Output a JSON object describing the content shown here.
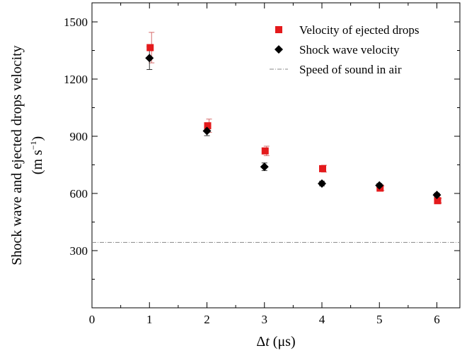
{
  "chart_data": {
    "type": "scatter",
    "title": "",
    "xlabel": {
      "italic_symbol": "t",
      "prefix": "Δ",
      "unit": " (μs)"
    },
    "ylabel": {
      "line1": "Shock wave and ejected drops velocity",
      "line2_prefix": "(m s",
      "line2_sup": "−1",
      "line2_suffix": ")"
    },
    "xlim": [
      0,
      6.4
    ],
    "ylim": [
      0,
      1600
    ],
    "x_ticks": [
      0,
      1,
      2,
      3,
      4,
      5,
      6
    ],
    "y_ticks": [
      300,
      600,
      900,
      1200,
      1500
    ],
    "x_tick_labels": [
      "0",
      "1",
      "2",
      "3",
      "4",
      "5",
      "6"
    ],
    "y_tick_labels": [
      "300",
      "600",
      "900",
      "1200",
      "1500"
    ],
    "series": [
      {
        "name": "Velocity of ejected drops",
        "marker": "square",
        "color": "#e41a1c",
        "x": [
          1,
          2,
          3,
          4,
          5,
          6
        ],
        "y": [
          1365,
          955,
          823,
          730,
          628,
          562
        ],
        "err": [
          80,
          35,
          25,
          18,
          12,
          12
        ]
      },
      {
        "name": "Shock wave velocity",
        "marker": "diamond",
        "color": "#000000",
        "x": [
          1,
          2,
          3,
          4,
          5,
          6
        ],
        "y": [
          1310,
          928,
          740,
          652,
          642,
          592
        ],
        "err": [
          60,
          25,
          20,
          12,
          10,
          10
        ]
      }
    ],
    "reference_line": {
      "name": "Speed of sound in air",
      "y": 343,
      "color": "#888888",
      "style": "dash-dot"
    },
    "legend_position": "top-right",
    "grid": false
  }
}
